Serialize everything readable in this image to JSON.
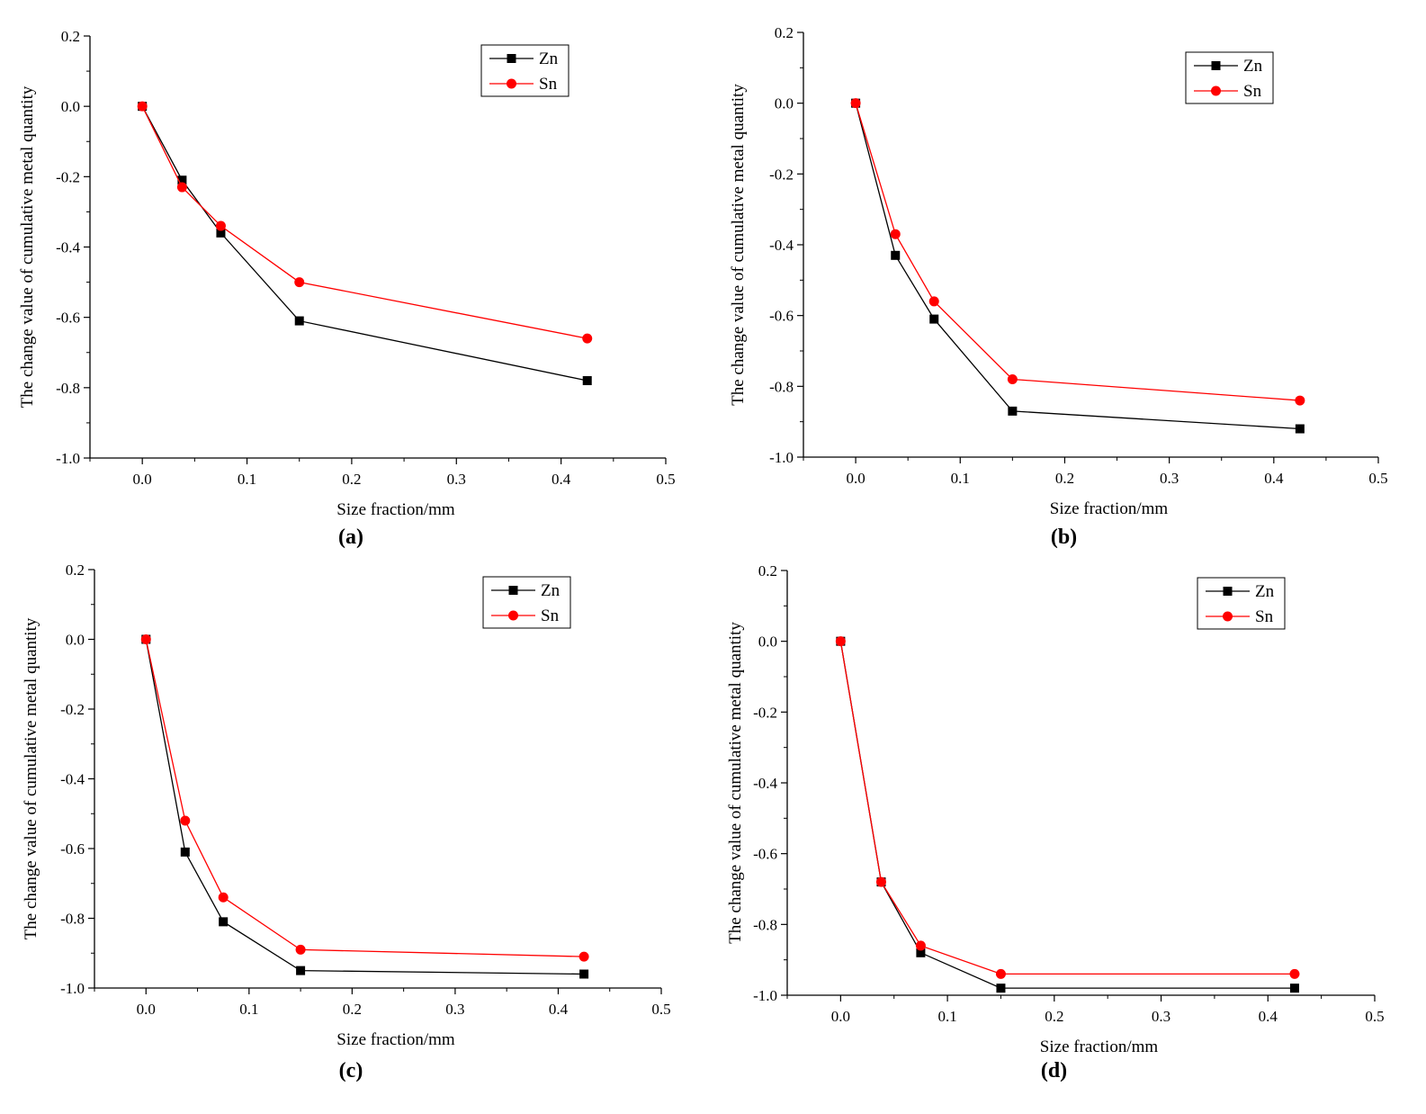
{
  "figure": {
    "colors": {
      "Zn": "#000000",
      "Sn": "#ff0000"
    }
  },
  "chart_data": [
    {
      "type": "line",
      "panel": "a",
      "panel_label": "(a)",
      "xlabel": "Size fraction/mm",
      "ylabel": "The change value of cumulative metal quantity",
      "xlim": [
        -0.05,
        0.5
      ],
      "ylim": [
        -1.0,
        0.2
      ],
      "xticks": [
        0.0,
        0.1,
        0.2,
        0.3,
        0.4,
        0.5
      ],
      "xtick_labels": [
        "0.0",
        "0.1",
        "0.2",
        "0.3",
        "0.4",
        "0.5"
      ],
      "yticks": [
        -1.0,
        -0.8,
        -0.6,
        -0.4,
        -0.2,
        0.0,
        0.2
      ],
      "ytick_labels": [
        "-1.0",
        "-0.8",
        "-0.6",
        "-0.4",
        "-0.2",
        "0.0",
        "0.2"
      ],
      "legend_position": "top-right",
      "x": [
        0,
        0.038,
        0.075,
        0.15,
        0.425
      ],
      "series": [
        {
          "name": "Zn",
          "marker": "square",
          "values": [
            0,
            -0.21,
            -0.36,
            -0.61,
            -0.78
          ]
        },
        {
          "name": "Sn",
          "marker": "circle",
          "values": [
            0,
            -0.23,
            -0.34,
            -0.5,
            -0.66
          ]
        }
      ]
    },
    {
      "type": "line",
      "panel": "b",
      "panel_label": "(b)",
      "xlabel": "Size fraction/mm",
      "ylabel": "The change value of cumulative metal quantity",
      "xlim": [
        -0.05,
        0.5
      ],
      "ylim": [
        -1.0,
        0.2
      ],
      "xticks": [
        0.0,
        0.1,
        0.2,
        0.3,
        0.4,
        0.5
      ],
      "xtick_labels": [
        "0.0",
        "0.1",
        "0.2",
        "0.3",
        "0.4",
        "0.5"
      ],
      "yticks": [
        -1.0,
        -0.8,
        -0.6,
        -0.4,
        -0.2,
        0.0,
        0.2
      ],
      "ytick_labels": [
        "-1.0",
        "-0.8",
        "-0.6",
        "-0.4",
        "-0.2",
        "0.0",
        "0.2"
      ],
      "legend_position": "top-right",
      "x": [
        0,
        0.038,
        0.075,
        0.15,
        0.425
      ],
      "series": [
        {
          "name": "Zn",
          "marker": "square",
          "values": [
            0,
            -0.43,
            -0.61,
            -0.87,
            -0.92
          ]
        },
        {
          "name": "Sn",
          "marker": "circle",
          "values": [
            0,
            -0.37,
            -0.56,
            -0.78,
            -0.84
          ]
        }
      ]
    },
    {
      "type": "line",
      "panel": "c",
      "panel_label": "(c)",
      "xlabel": "Size fraction/mm",
      "ylabel": "The change value of cumulative metal quantity",
      "xlim": [
        -0.05,
        0.5
      ],
      "ylim": [
        -1.0,
        0.2
      ],
      "xticks": [
        0.0,
        0.1,
        0.2,
        0.3,
        0.4,
        0.5
      ],
      "xtick_labels": [
        "0.0",
        "0.1",
        "0.2",
        "0.3",
        "0.4",
        "0.5"
      ],
      "yticks": [
        -1.0,
        -0.8,
        -0.6,
        -0.4,
        -0.2,
        0.0,
        0.2
      ],
      "ytick_labels": [
        "-1.0",
        "-0.8",
        "-0.6",
        "-0.4",
        "-0.2",
        "0.0",
        "0.2"
      ],
      "legend_position": "top-right",
      "x": [
        0,
        0.038,
        0.075,
        0.15,
        0.425
      ],
      "series": [
        {
          "name": "Zn",
          "marker": "square",
          "values": [
            0,
            -0.61,
            -0.81,
            -0.95,
            -0.96
          ]
        },
        {
          "name": "Sn",
          "marker": "circle",
          "values": [
            0,
            -0.52,
            -0.74,
            -0.89,
            -0.91
          ]
        }
      ]
    },
    {
      "type": "line",
      "panel": "d",
      "panel_label": "(d)",
      "xlabel": "Size fraction/mm",
      "ylabel": "The change value of cumulative metal quantity",
      "xlim": [
        -0.05,
        0.5
      ],
      "ylim": [
        -1.0,
        0.2
      ],
      "xticks": [
        0.0,
        0.1,
        0.2,
        0.3,
        0.4,
        0.5
      ],
      "xtick_labels": [
        "0.0",
        "0.1",
        "0.2",
        "0.3",
        "0.4",
        "0.5"
      ],
      "yticks": [
        -1.0,
        -0.8,
        -0.6,
        -0.4,
        -0.2,
        0.0,
        0.2
      ],
      "ytick_labels": [
        "-1.0",
        "-0.8",
        "-0.6",
        "-0.4",
        "-0.2",
        "0.0",
        "0.2"
      ],
      "legend_position": "top-right",
      "x": [
        0,
        0.038,
        0.075,
        0.15,
        0.425
      ],
      "series": [
        {
          "name": "Zn",
          "marker": "square",
          "values": [
            0,
            -0.68,
            -0.88,
            -0.98,
            -0.98
          ]
        },
        {
          "name": "Sn",
          "marker": "circle",
          "values": [
            0,
            -0.68,
            -0.86,
            -0.94,
            -0.94
          ]
        }
      ]
    }
  ]
}
